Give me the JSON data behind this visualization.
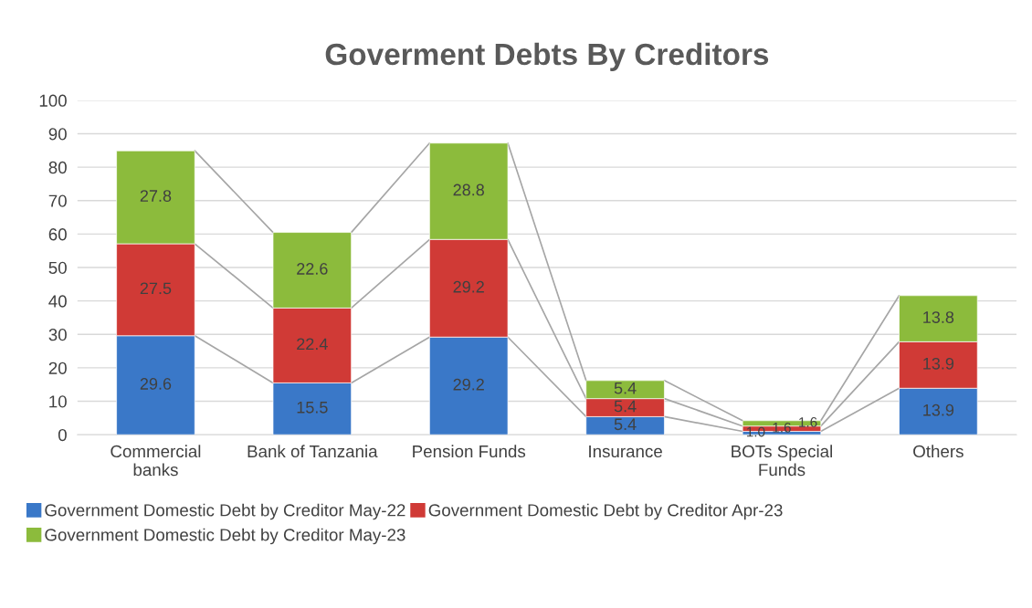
{
  "chart_data": {
    "type": "bar",
    "title": "Goverment Debts By Creditors",
    "categories": [
      "Commercial\nbanks",
      "Bank of Tanzania",
      "Pension Funds",
      "Insurance",
      "BOTs Special\nFunds",
      "Others"
    ],
    "stacked": true,
    "series": [
      {
        "name": "Government Domestic Debt by Creditor May-22",
        "color": "#3a78c8",
        "values": [
          29.6,
          15.5,
          29.2,
          5.4,
          1.0,
          13.9
        ],
        "value_labels": [
          "29.6",
          "15.5",
          "29.2",
          "5.4",
          "1.0",
          "13.9"
        ]
      },
      {
        "name": "Government Domestic Debt by Creditor Apr-23",
        "color": "#d03a36",
        "values": [
          27.5,
          22.4,
          29.2,
          5.4,
          1.6,
          13.9
        ]
      },
      {
        "name": "Government Domestic Debt by Creditor May-23",
        "color": "#8cbb3c",
        "values": [
          27.8,
          22.6,
          28.8,
          5.4,
          1.6,
          13.8
        ]
      }
    ],
    "ylim": [
      0,
      100
    ],
    "yticks": [
      0,
      10,
      20,
      30,
      40,
      50,
      60,
      70,
      80,
      90,
      100
    ],
    "grid": "y",
    "legend": "bottom",
    "data_labels": true
  }
}
